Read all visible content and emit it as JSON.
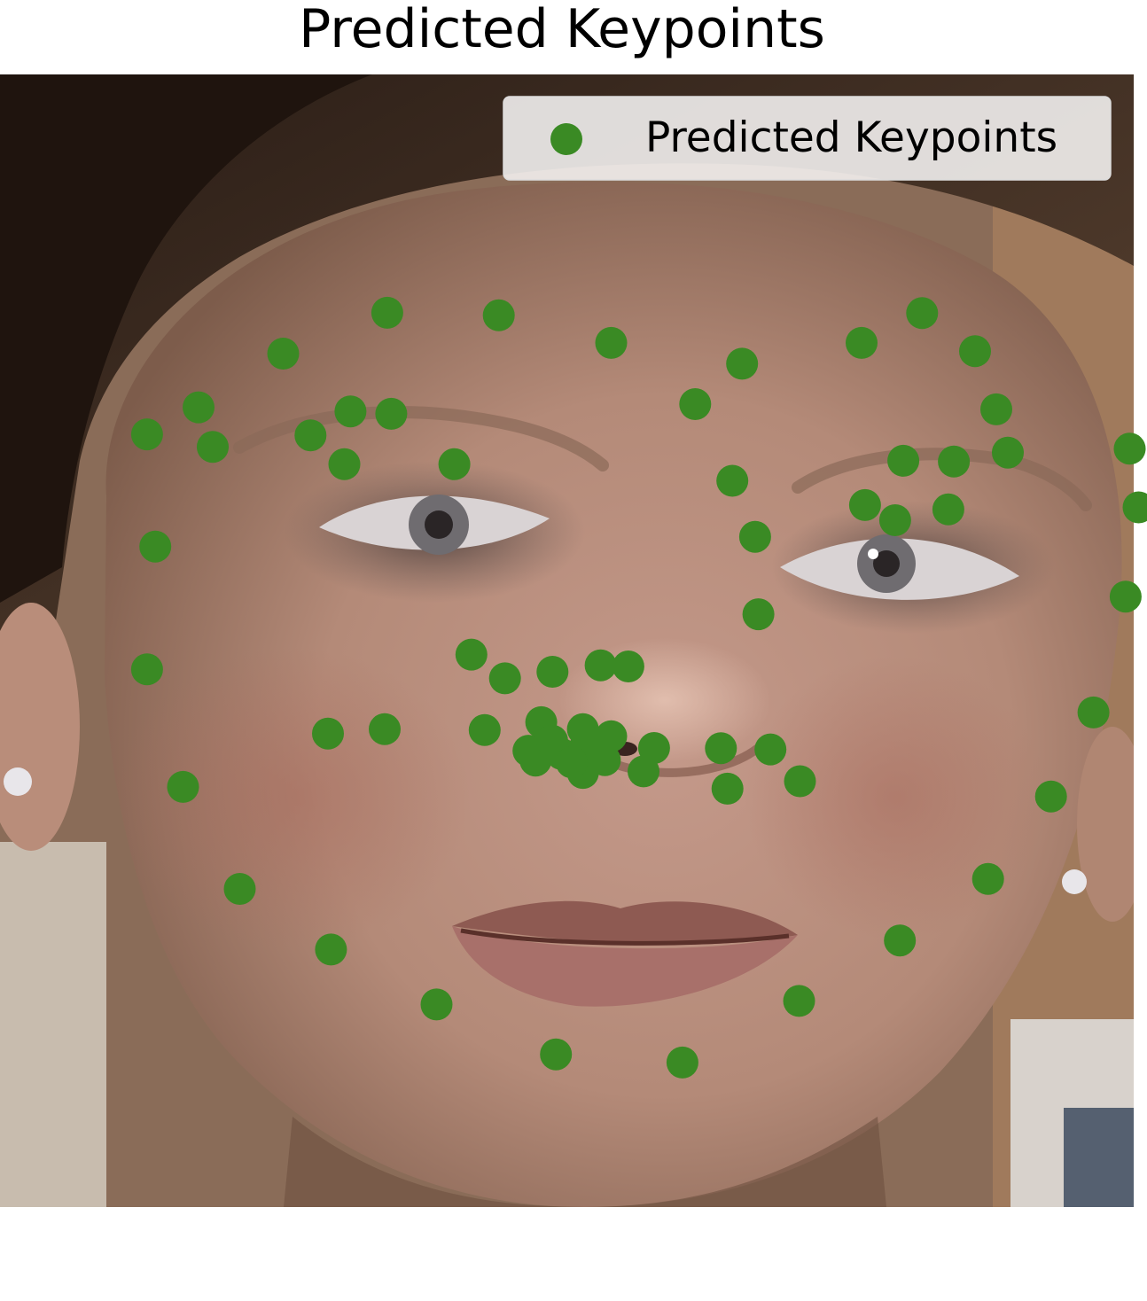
{
  "chart_data": {
    "type": "scatter",
    "title": "Predicted Keypoints",
    "background": "face-photo",
    "legend": {
      "label": "Predicted Keypoints",
      "position": "top-right"
    },
    "series": [
      {
        "name": "Predicted Keypoints",
        "color": "#3a8a24",
        "points": [
          [
            -37.06,
            18.22
          ],
          [
            -36.33,
            8.32
          ],
          [
            -37.06,
            -2.53
          ],
          [
            -33.88,
            -12.9
          ],
          [
            -28.87,
            -21.91
          ],
          [
            -20.82,
            -27.26
          ],
          [
            -11.5,
            -32.11
          ],
          [
            -0.96,
            -36.52
          ],
          [
            10.2,
            -37.24
          ],
          [
            20.5,
            -31.8
          ],
          [
            29.4,
            -26.46
          ],
          [
            37.18,
            -21.03
          ],
          [
            42.74,
            -13.75
          ],
          [
            46.49,
            -6.33
          ],
          [
            49.33,
            3.9
          ],
          [
            50.47,
            11.78
          ],
          [
            49.69,
            16.96
          ],
          [
            -32.51,
            20.61
          ],
          [
            -25.04,
            25.35
          ],
          [
            -15.85,
            28.96
          ],
          [
            -6.01,
            28.73
          ],
          [
            3.91,
            26.3
          ],
          [
            15.47,
            24.46
          ],
          [
            26.02,
            26.3
          ],
          [
            31.36,
            28.93
          ],
          [
            36.03,
            25.56
          ],
          [
            37.91,
            20.43
          ],
          [
            11.33,
            20.89
          ],
          [
            14.61,
            14.12
          ],
          [
            16.62,
            9.18
          ],
          [
            16.91,
            2.34
          ],
          [
            -8.43,
            -1.22
          ],
          [
            -5.46,
            -3.32
          ],
          [
            -1.27,
            -2.74
          ],
          [
            2.98,
            -2.17
          ],
          [
            5.43,
            -2.27
          ],
          [
            -31.26,
            17.11
          ],
          [
            -22.63,
            18.14
          ],
          [
            -19.1,
            20.25
          ],
          [
            -15.5,
            20.04
          ],
          [
            -9.93,
            15.59
          ],
          [
            -19.64,
            15.59
          ],
          [
            28.98,
            10.64
          ],
          [
            38.93,
            16.61
          ],
          [
            34.16,
            15.82
          ],
          [
            29.7,
            15.89
          ],
          [
            26.32,
            11.98
          ],
          [
            33.68,
            11.6
          ],
          [
            -21.09,
            -8.19
          ],
          [
            -16.08,
            -7.81
          ],
          [
            -7.25,
            -7.89
          ],
          [
            -2.26,
            -7.19
          ],
          [
            1.42,
            -7.81
          ],
          [
            7.7,
            -9.47
          ],
          [
            13.6,
            -9.49
          ],
          [
            17.97,
            -9.59
          ],
          [
            20.58,
            -12.4
          ],
          [
            14.18,
            -13.06
          ],
          [
            6.77,
            -11.53
          ],
          [
            1.42,
            -11.67
          ],
          [
            -2.76,
            -10.58
          ],
          [
            -3.39,
            -9.71
          ],
          [
            -0.45,
            -10.01
          ],
          [
            3.36,
            -10.55
          ],
          [
            3.91,
            -8.43
          ],
          [
            1.6,
            -9.41
          ],
          [
            -1.3,
            -8.82
          ],
          [
            0.43,
            -10.74
          ]
        ]
      }
    ]
  }
}
